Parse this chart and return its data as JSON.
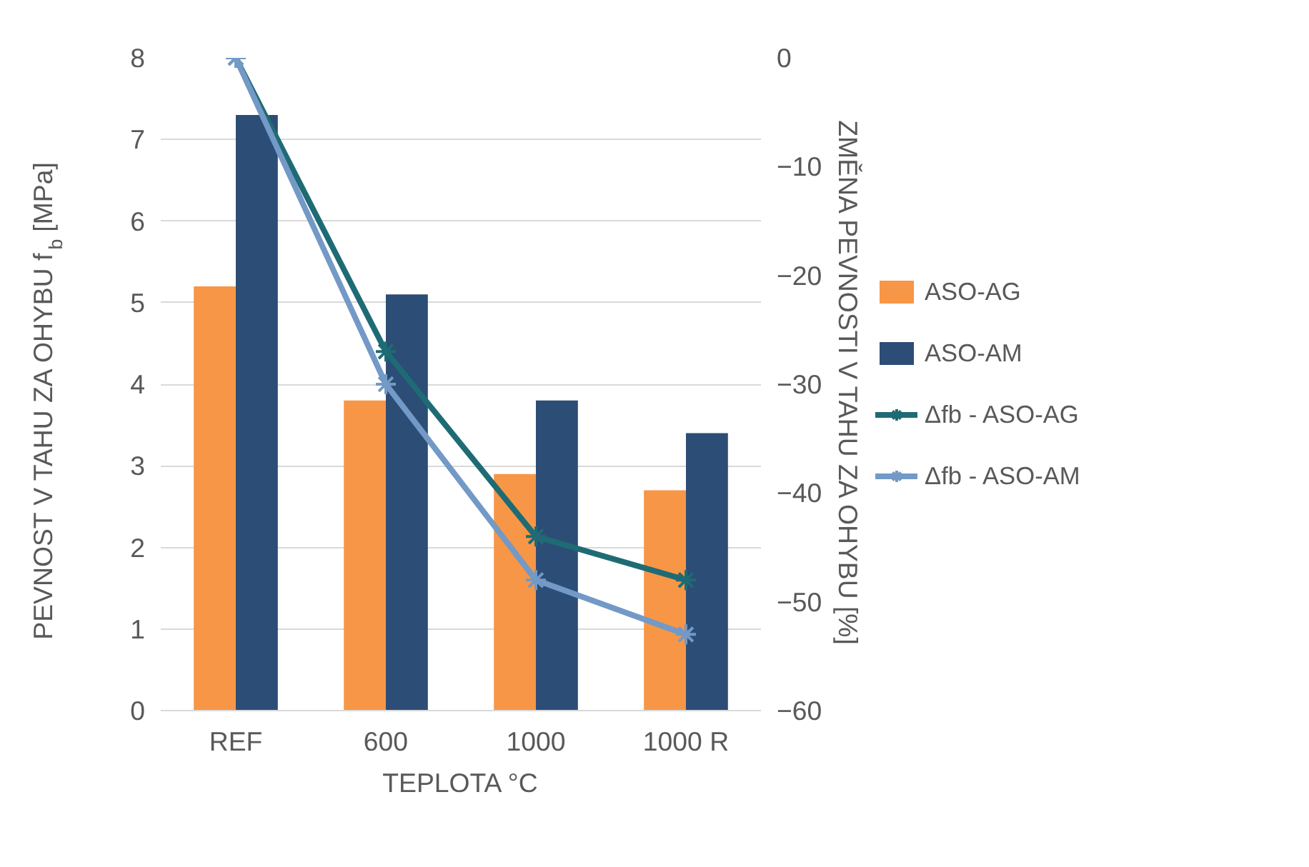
{
  "chart_data": {
    "type": "bar",
    "xlabel": "TEPLOTA °C",
    "ylabel": "PEVNOST V TAHU ZA OHYBU f$_{b}$ [MPa]",
    "y2label": "ZMĚNA PEVNOSTI V TAHU ZA OHYBU [%]",
    "categories": [
      "REF",
      "600",
      "1000",
      "1000 R"
    ],
    "series": [
      {
        "name": "ASO-AG",
        "color": "#f79646",
        "values": [
          5.2,
          3.8,
          2.9,
          2.7
        ]
      },
      {
        "name": "ASO-AM",
        "color": "#2c4d75",
        "values": [
          7.3,
          5.1,
          3.8,
          3.4
        ]
      },
      {
        "name": "Δfb - ASO-AG",
        "type": "line",
        "axis": "y2",
        "color": "#1f6b75",
        "values": [
          0,
          -27,
          -44,
          -48
        ]
      },
      {
        "name": "Δfb - ASO-AM",
        "type": "line",
        "axis": "y2",
        "color": "#7399c6",
        "values": [
          0,
          -30,
          -48,
          -53
        ]
      }
    ],
    "ylim": [
      0,
      8
    ],
    "yticks": [
      0,
      1,
      2,
      3,
      4,
      5,
      6,
      7,
      8
    ],
    "y2lim": [
      -60,
      0
    ],
    "y2ticks": [
      -60,
      -50,
      -40,
      -30,
      -20,
      -10,
      0
    ],
    "grid": "y",
    "legend": "right",
    "marker": "cross"
  }
}
